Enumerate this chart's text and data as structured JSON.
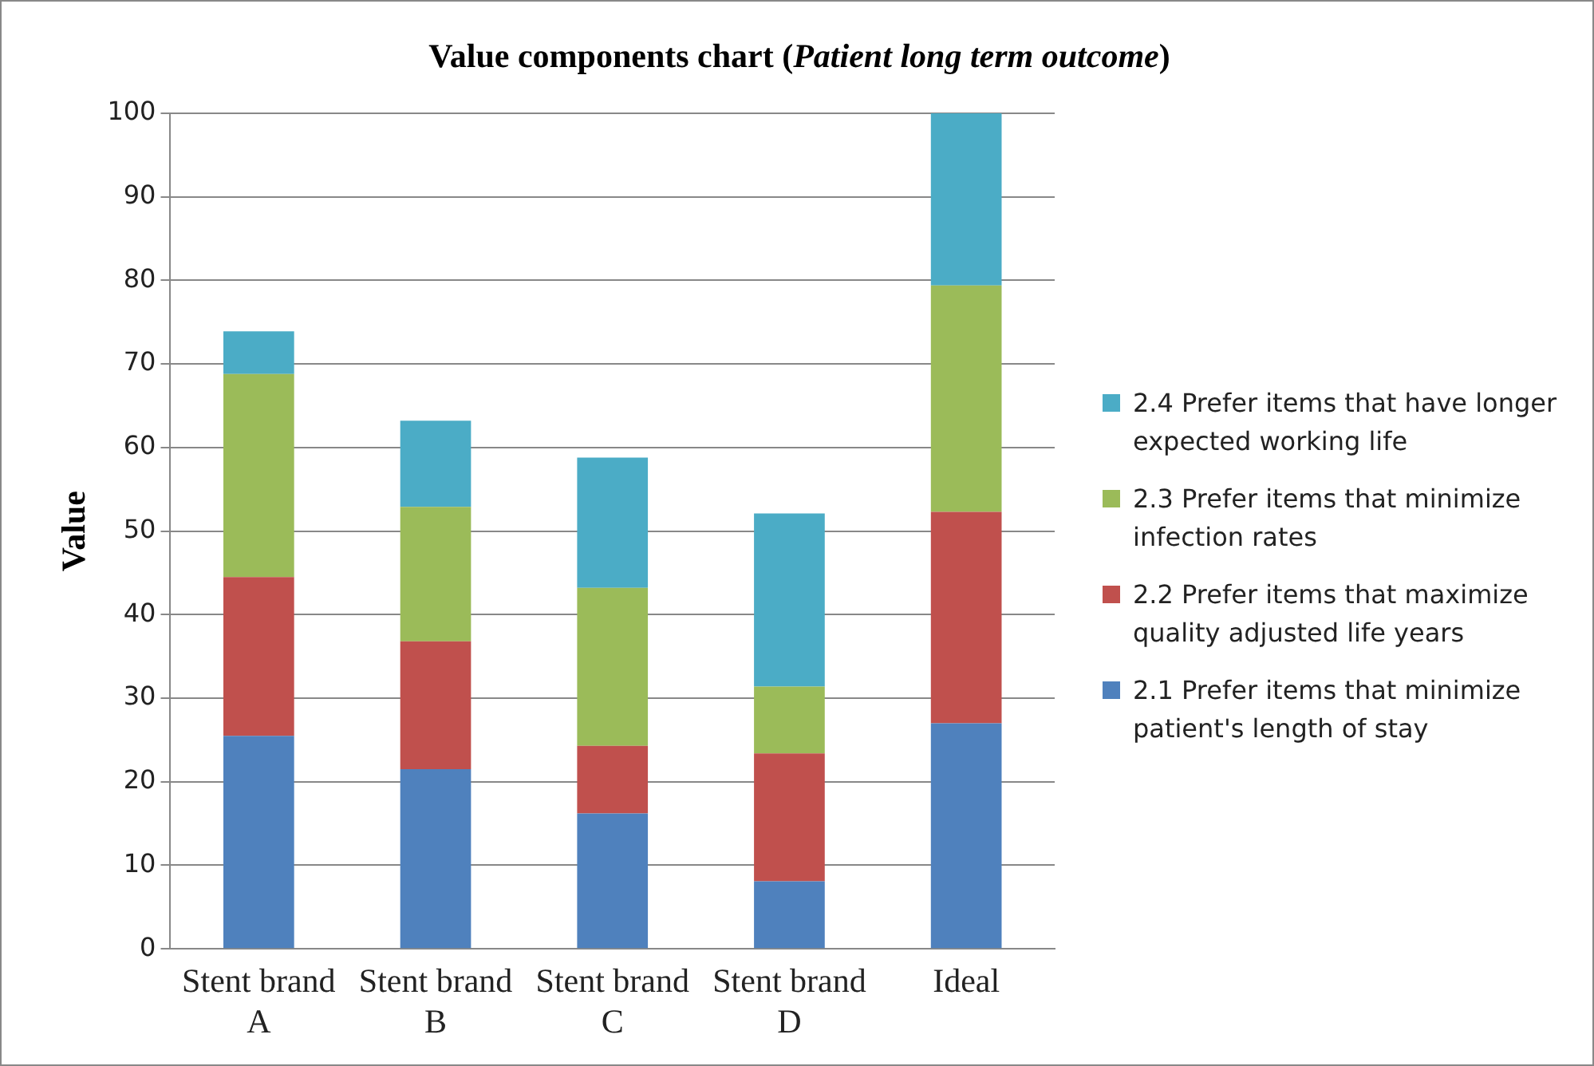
{
  "chart_data": {
    "type": "bar",
    "title": "Value components chart (Patient long term outcome)",
    "ylabel": "Value",
    "categories": [
      "Stent brand A",
      "Stent brand B",
      "Stent brand C",
      "Stent brand D",
      "Ideal"
    ],
    "stacked": true,
    "ylim": [
      0,
      100
    ],
    "yticks": [
      0,
      10,
      20,
      30,
      40,
      50,
      60,
      70,
      80,
      90,
      100
    ],
    "grid": "y",
    "legend": "right",
    "series": [
      {
        "name": "2.1 Prefer items that minimize patient's length of stay",
        "color": "#4f81bd",
        "values": [
          25.5,
          21.5,
          16.2,
          8.1,
          27
        ]
      },
      {
        "name": "2.2 Prefer items that maximize quality adjusted life years",
        "color": "#c0504d",
        "values": [
          19,
          15.3,
          8.1,
          15.3,
          25.3
        ]
      },
      {
        "name": "2.3 Prefer items that minimize infection rates",
        "color": "#9bbb59",
        "values": [
          24.3,
          16.1,
          18.9,
          8,
          27.1
        ]
      },
      {
        "name": "2.4 Prefer items that have longer expected working life",
        "color": "#4bacc6",
        "values": [
          5.1,
          10.3,
          15.6,
          20.7,
          20.6
        ]
      }
    ]
  }
}
